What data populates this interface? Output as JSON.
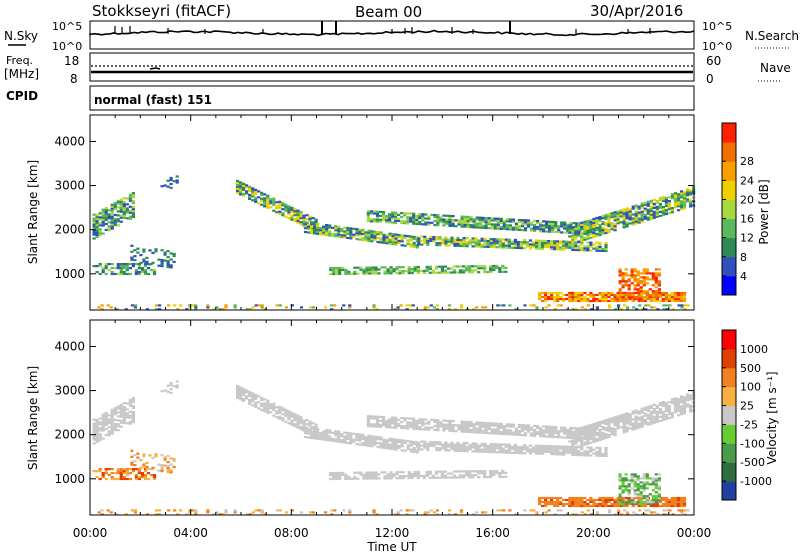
{
  "header": {
    "title": "Stokkseyri (fitACF)",
    "beam": "Beam 00",
    "date": "30/Apr/2016"
  },
  "nsky_panel": {
    "left_label": "N.Sky",
    "right_label": "N.Search",
    "left_ticks": [
      "10^5",
      "10^0"
    ],
    "right_ticks": [
      "10^5",
      "10^0"
    ]
  },
  "freq_panel": {
    "left_label_1": "Freq.",
    "left_label_2": "[MHz]",
    "left_ticks": [
      "18",
      "8"
    ],
    "right_label": "Nave",
    "right_ticks": [
      "60",
      "0"
    ]
  },
  "cpid": {
    "label": "CPID",
    "value": "normal (fast) 151"
  },
  "chart_data": [
    {
      "type": "heatmap",
      "name": "power",
      "ylabel": "Slant Range [km]",
      "xlabel": "",
      "x_ticks": [
        "00:00",
        "04:00",
        "08:00",
        "12:00",
        "16:00",
        "20:00",
        "00:00"
      ],
      "y_ticks": [
        "1000",
        "2000",
        "3000",
        "4000"
      ],
      "ylim": [
        180,
        4600
      ],
      "xlim_hours": [
        0,
        24
      ],
      "colorbar": {
        "label": "Power [dB]",
        "ticks": [
          "4",
          "8",
          "12",
          "16",
          "20",
          "24",
          "28"
        ],
        "colors": [
          "#0000ff",
          "#3050c0",
          "#2e8b57",
          "#5cb85c",
          "#a8d840",
          "#f0d000",
          "#f8a000",
          "#f07000",
          "#ff2000"
        ]
      }
    },
    {
      "type": "heatmap",
      "name": "velocity",
      "ylabel": "Slant Range [km]",
      "xlabel": "Time UT",
      "x_ticks": [
        "00:00",
        "04:00",
        "08:00",
        "12:00",
        "16:00",
        "20:00",
        "00:00"
      ],
      "y_ticks": [
        "1000",
        "2000",
        "3000",
        "4000"
      ],
      "ylim": [
        180,
        4600
      ],
      "xlim_hours": [
        0,
        24
      ],
      "colorbar": {
        "label": "Velocity [m s⁻¹]",
        "ticks": [
          "1000",
          "500",
          "100",
          "25",
          "-25",
          "-100",
          "-500",
          "-1000"
        ],
        "colors": [
          "#2040a0",
          "#2e6e3e",
          "#4a9a4a",
          "#66cc33",
          "#c8c8c8",
          "#f8b040",
          "#f08020",
          "#e04000",
          "#ff0000"
        ]
      }
    }
  ]
}
